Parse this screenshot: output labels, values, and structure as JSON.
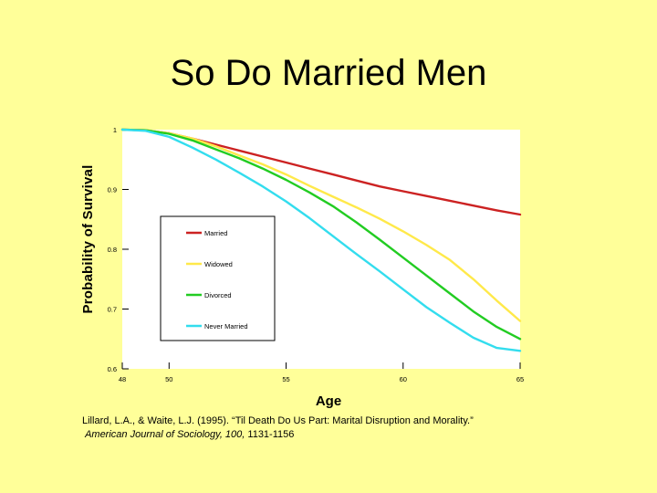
{
  "slide": {
    "title": "So Do Married Men"
  },
  "chart_data": {
    "type": "line",
    "title": "",
    "xlabel": "Age",
    "ylabel": "Probability of Survival",
    "xlim": [
      48,
      65
    ],
    "ylim": [
      0.6,
      1.0
    ],
    "x_ticks": [
      48,
      50,
      55,
      60,
      65
    ],
    "y_ticks": [
      0.6,
      0.7,
      0.8,
      0.9,
      1
    ],
    "x_tick_labels": [
      "48",
      "50",
      "55",
      "60",
      "65"
    ],
    "y_tick_labels": [
      "0.6",
      "0.7",
      "0.8",
      "0.9",
      "1"
    ],
    "grid": false,
    "legend_placement": "center-left",
    "x": [
      48,
      49,
      50,
      51,
      52,
      53,
      54,
      55,
      56,
      57,
      58,
      59,
      60,
      61,
      62,
      63,
      64,
      65
    ],
    "series": [
      {
        "name": "Married",
        "color": "#cc2222",
        "values": [
          1.0,
          0.999,
          0.994,
          0.985,
          0.975,
          0.965,
          0.955,
          0.945,
          0.935,
          0.925,
          0.915,
          0.905,
          0.897,
          0.889,
          0.881,
          0.873,
          0.865,
          0.858
        ]
      },
      {
        "name": "Widowed",
        "color": "#ffe94a",
        "values": [
          1.0,
          0.999,
          0.994,
          0.985,
          0.972,
          0.957,
          0.942,
          0.925,
          0.906,
          0.888,
          0.87,
          0.851,
          0.83,
          0.807,
          0.782,
          0.75,
          0.714,
          0.68
        ]
      },
      {
        "name": "Divorced",
        "color": "#22cc22",
        "values": [
          1.0,
          0.999,
          0.993,
          0.982,
          0.967,
          0.952,
          0.935,
          0.916,
          0.895,
          0.872,
          0.845,
          0.816,
          0.786,
          0.756,
          0.726,
          0.696,
          0.67,
          0.65
        ]
      },
      {
        "name": "Never Married",
        "color": "#33ddee",
        "values": [
          1.0,
          0.998,
          0.988,
          0.97,
          0.95,
          0.928,
          0.905,
          0.88,
          0.852,
          0.822,
          0.792,
          0.763,
          0.733,
          0.703,
          0.677,
          0.652,
          0.635,
          0.63
        ]
      }
    ]
  },
  "citation": {
    "line1": "Lillard, L.A., & Waite, L.J. (1995). “Til Death Do Us Part: Marital Disruption and Morality.”",
    "journal": "American Journal of Sociology, 100,",
    "pages": " 1131-1156"
  }
}
